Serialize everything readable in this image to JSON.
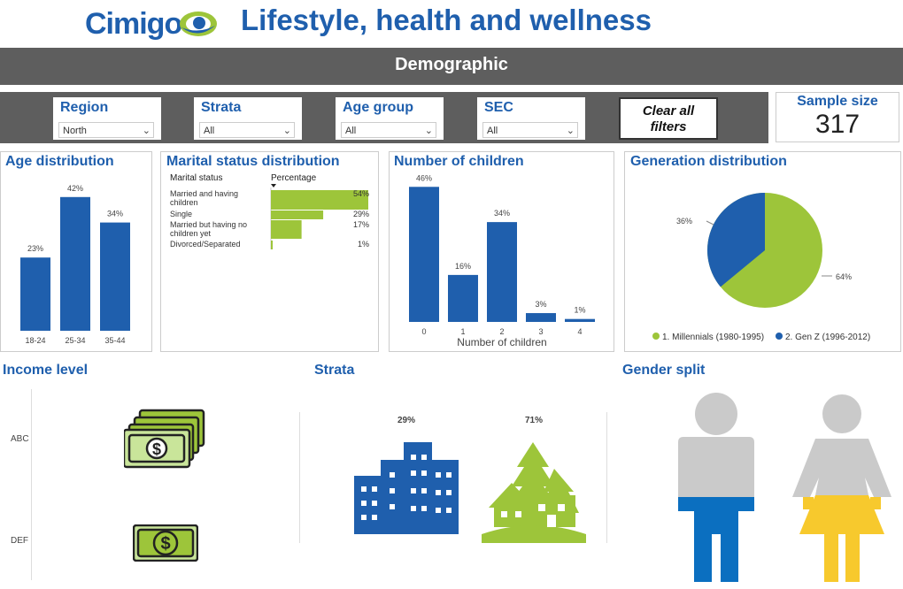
{
  "header": {
    "brand": "Cimigo",
    "title": "Lifestyle, health and wellness",
    "banner": "Demographic"
  },
  "filters": [
    {
      "label": "Region",
      "value": "North"
    },
    {
      "label": "Strata",
      "value": "All"
    },
    {
      "label": "Age group",
      "value": "All"
    },
    {
      "label": "SEC",
      "value": "All"
    }
  ],
  "clear_button": {
    "line1": "Clear all",
    "line2": "filters"
  },
  "sample": {
    "label": "Sample size",
    "value": "317"
  },
  "chart_data": [
    {
      "type": "bar",
      "title": "Age distribution",
      "categories": [
        "18-24",
        "25-34",
        "35-44"
      ],
      "values": [
        23,
        42,
        34
      ],
      "labels": [
        "23%",
        "42%",
        "34%"
      ],
      "ylim": [
        0,
        50
      ],
      "color": "#1f5fad"
    },
    {
      "type": "bar",
      "orientation": "horizontal",
      "title": "Marital status distribution",
      "column_headers": [
        "Marital status",
        "Percentage"
      ],
      "categories": [
        "Married and having children",
        "Single",
        "Married but having no children yet",
        "Divorced/Separated"
      ],
      "values": [
        54,
        29,
        17,
        1
      ],
      "labels": [
        "54%",
        "29%",
        "17%",
        "1%"
      ],
      "xlim": [
        0,
        54
      ],
      "color": "#9dc53a"
    },
    {
      "type": "bar",
      "title": "Number of children",
      "categories": [
        "0",
        "1",
        "2",
        "3",
        "4"
      ],
      "values": [
        46,
        16,
        34,
        3,
        1
      ],
      "labels": [
        "46%",
        "16%",
        "34%",
        "3%",
        "1%"
      ],
      "xlabel": "Number of children",
      "ylim": [
        0,
        50
      ],
      "color": "#1f5fad"
    },
    {
      "type": "pie",
      "title": "Generation distribution",
      "series": [
        {
          "name": "1. Millennials (1980-1995)",
          "value": 64,
          "label": "64%",
          "color": "#9dc53a"
        },
        {
          "name": "2. Gen Z (1996-2012)",
          "value": 36,
          "label": "36%",
          "color": "#1f5fad"
        }
      ],
      "legend": "bottom"
    }
  ],
  "income": {
    "title": "Income level",
    "rows": [
      "ABC",
      "DEF"
    ]
  },
  "strata": {
    "title": "Strata",
    "urban_label": "29%",
    "rural_label": "71%",
    "urban_value": 29,
    "rural_value": 71
  },
  "gender": {
    "title": "Gender split"
  },
  "colors": {
    "brand": "#1f5fad",
    "green": "#9dc53a",
    "gray": "#cacaca",
    "yellow": "#f7c92d",
    "blue": "#0b6fc0",
    "bar": "#5e5e5e"
  }
}
